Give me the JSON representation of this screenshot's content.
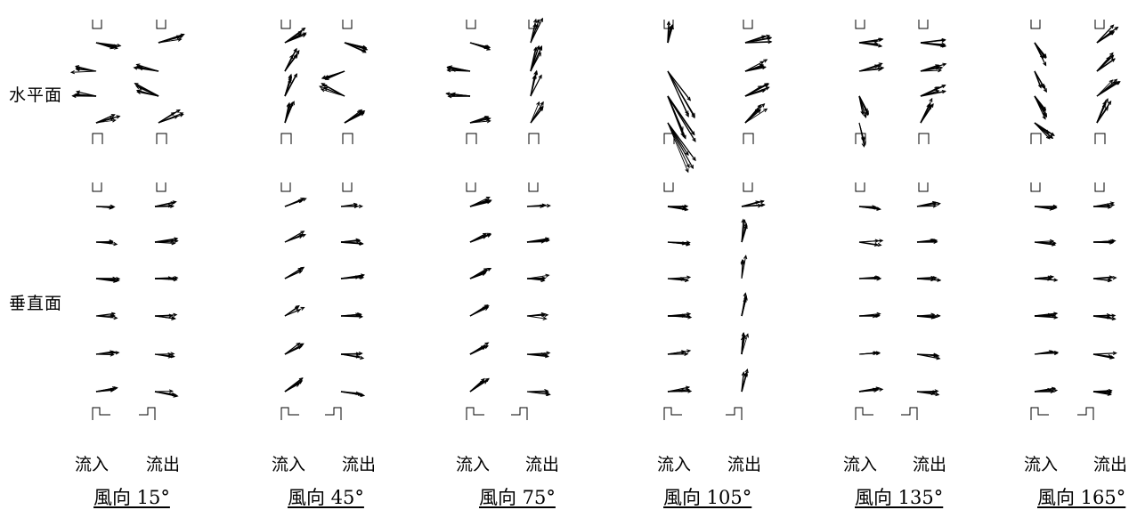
{
  "figure": {
    "row_labels": {
      "horizontal": "水平面",
      "vertical": "垂直面"
    },
    "column_labels": {
      "inflow": "流入",
      "outflow": "流出"
    },
    "panels": [
      {
        "caption": "風向 15°"
      },
      {
        "caption": "風向 45°"
      },
      {
        "caption": "風向 75°"
      },
      {
        "caption": "風向 105°"
      },
      {
        "caption": "風向 135°"
      },
      {
        "caption": "風向 165°"
      }
    ]
  }
}
